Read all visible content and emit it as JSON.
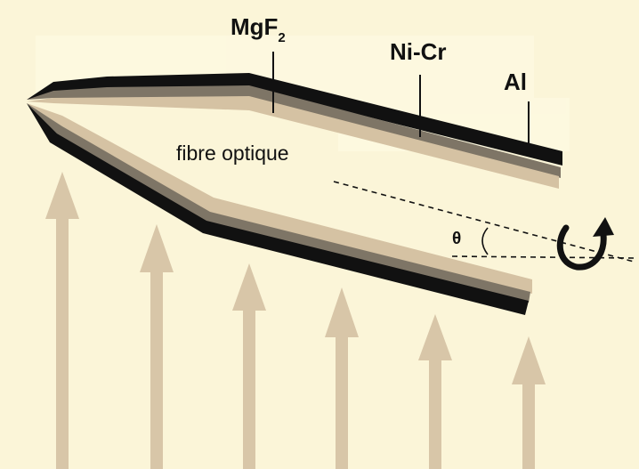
{
  "labels": {
    "mgf_main": "MgF",
    "mgf_sub": "2",
    "nicr": "Ni-Cr",
    "al": "Al",
    "fibre": "fibre optique",
    "theta": "θ"
  },
  "colors": {
    "background": "#fbf5d8",
    "arrow": "#d8c6a8",
    "layer_dark": "#111111",
    "layer_gray": "#7e7566",
    "layer_light": "#d5c2a3",
    "rotation_arrow": "#111111"
  }
}
